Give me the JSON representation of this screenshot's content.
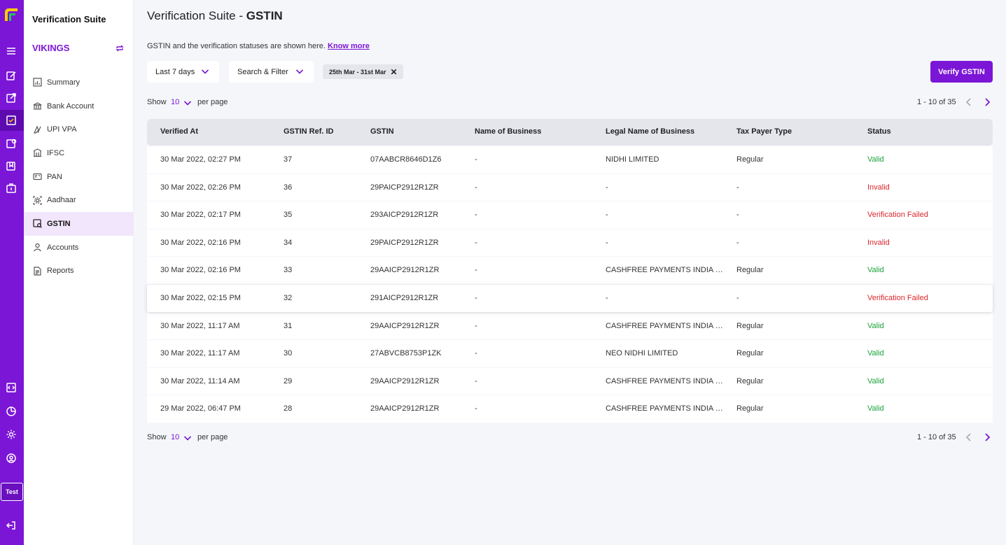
{
  "colors": {
    "brand": "#7b16d6",
    "valid": "#1aa33a",
    "invalid": "#d9272e"
  },
  "rail": {
    "icons": [
      "menu-icon",
      "edit-icon",
      "external-icon",
      "verification-icon",
      "payout-icon",
      "document-icon",
      "bag-icon",
      "developer-icon",
      "analytics-icon",
      "settings-icon",
      "profile-icon",
      "logout-icon"
    ],
    "mode_label": "Test"
  },
  "sidebar": {
    "app_title": "Verification Suite",
    "workspace": "VIKINGS",
    "items": [
      {
        "label": "Summary",
        "icon": "chart-icon"
      },
      {
        "label": "Bank Account",
        "icon": "bank-icon"
      },
      {
        "label": "UPI VPA",
        "icon": "upi-icon"
      },
      {
        "label": "IFSC",
        "icon": "building-icon"
      },
      {
        "label": "PAN",
        "icon": "card-icon"
      },
      {
        "label": "Aadhaar",
        "icon": "fingerprint-icon"
      },
      {
        "label": "GSTIN",
        "icon": "gstin-icon"
      },
      {
        "label": "Accounts",
        "icon": "user-icon"
      },
      {
        "label": "Reports",
        "icon": "report-icon"
      }
    ]
  },
  "header": {
    "title_prefix": "Verification Suite - ",
    "title_bold": "GSTIN",
    "description": "GSTIN and the verification statuses are shown here.",
    "know_more": "Know more"
  },
  "filters": {
    "date_range": "Last 7 days",
    "search_filter": "Search & Filter",
    "chip_label": "25th Mar - 31st Mar",
    "verify_button": "Verify GSTIN"
  },
  "pagination": {
    "show_label": "Show",
    "per_page_value": "10",
    "per_page_label": "per page",
    "range": "1 - 10 of 35"
  },
  "table": {
    "columns": [
      "Verified At",
      "GSTIN Ref. ID",
      "GSTIN",
      "Name of Business",
      "Legal Name of Business",
      "Tax Payer Type",
      "Status"
    ],
    "rows": [
      [
        "30 Mar 2022, 02:27 PM",
        "37",
        "07AABCR8646D1Z6",
        "-",
        "NIDHI LIMITED",
        "Regular",
        "Valid"
      ],
      [
        "30 Mar 2022, 02:26 PM",
        "36",
        "29PAICP2912R1ZR",
        "-",
        "-",
        "-",
        "Invalid"
      ],
      [
        "30 Mar 2022, 02:17 PM",
        "35",
        "293AICP2912R1ZR",
        "-",
        "-",
        "-",
        "Verification Failed"
      ],
      [
        "30 Mar 2022, 02:16 PM",
        "34",
        "29PAICP2912R1ZR",
        "-",
        "-",
        "-",
        "Invalid"
      ],
      [
        "30 Mar 2022, 02:16 PM",
        "33",
        "29AAICP2912R1ZR",
        "-",
        "CASHFREE PAYMENTS INDIA PRIVATE LIMITED",
        "Regular",
        "Valid"
      ],
      [
        "30 Mar 2022, 02:15 PM",
        "32",
        "291AICP2912R1ZR",
        "-",
        "-",
        "-",
        "Verification Failed"
      ],
      [
        "30 Mar 2022, 11:17 AM",
        "31",
        "29AAICP2912R1ZR",
        "-",
        "CASHFREE PAYMENTS INDIA PRIVATE LIMITED",
        "Regular",
        "Valid"
      ],
      [
        "30 Mar 2022, 11:17 AM",
        "30",
        "27ABVCB8753P1ZK",
        "-",
        "NEO NIDHI LIMITED",
        "Regular",
        "Valid"
      ],
      [
        "30 Mar 2022, 11:14 AM",
        "29",
        "29AAICP2912R1ZR",
        "-",
        "CASHFREE PAYMENTS INDIA PRIVATE LIMITED",
        "Regular",
        "Valid"
      ],
      [
        "29 Mar 2022, 06:47 PM",
        "28",
        "29AAICP2912R1ZR",
        "-",
        "CASHFREE PAYMENTS INDIA PRIVATE LIMITED",
        "Regular",
        "Valid"
      ]
    ]
  }
}
